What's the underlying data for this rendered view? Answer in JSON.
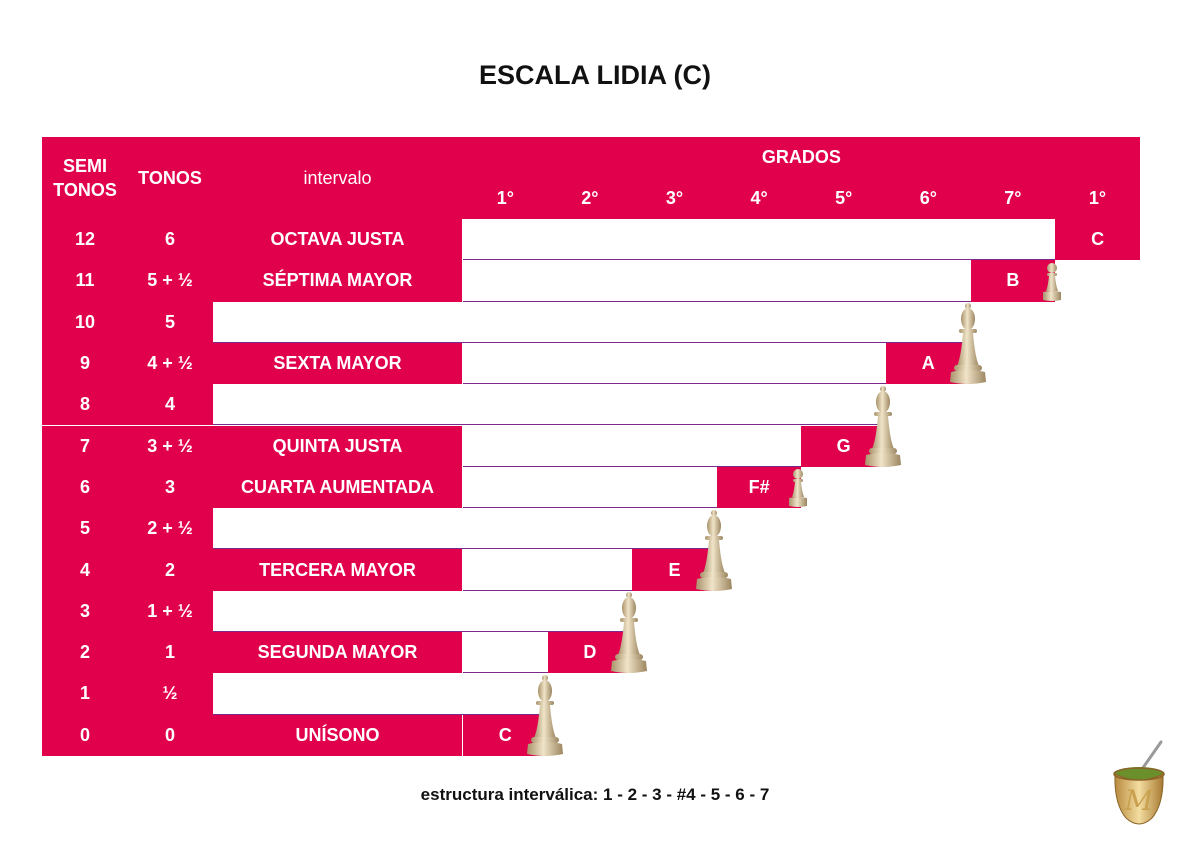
{
  "title": "ESCALA LIDIA (C)",
  "header": {
    "semitonos": "SEMI\nTONOS",
    "tonos": "TONOS",
    "intervalo": "intervalo",
    "grados": "GRADOS",
    "grados_cols": [
      "1°",
      "2°",
      "3°",
      "4°",
      "5°",
      "6°",
      "7°",
      "1°"
    ]
  },
  "rows": [
    {
      "semitonos": "12",
      "tonos": "6",
      "intervalo": "OCTAVA JUSTA",
      "note": "C",
      "piece": ""
    },
    {
      "semitonos": "11",
      "tonos": "5 + ½",
      "intervalo": "SÉPTIMA MAYOR",
      "note": "B",
      "piece": "pawn"
    },
    {
      "semitonos": "10",
      "tonos": "5",
      "intervalo": "",
      "note": "",
      "piece": ""
    },
    {
      "semitonos": "9",
      "tonos": "4 + ½",
      "intervalo": "SEXTA MAYOR",
      "note": "A",
      "piece": "bishop"
    },
    {
      "semitonos": "8",
      "tonos": "4",
      "intervalo": "",
      "note": "",
      "piece": ""
    },
    {
      "semitonos": "7",
      "tonos": "3 + ½",
      "intervalo": "QUINTA JUSTA",
      "note": "G",
      "piece": "bishop"
    },
    {
      "semitonos": "6",
      "tonos": "3",
      "intervalo": "CUARTA AUMENTADA",
      "note": "F#",
      "piece": "pawn"
    },
    {
      "semitonos": "5",
      "tonos": "2 + ½",
      "intervalo": "",
      "note": "",
      "piece": ""
    },
    {
      "semitonos": "4",
      "tonos": "2",
      "intervalo": "TERCERA MAYOR",
      "note": "E",
      "piece": "bishop"
    },
    {
      "semitonos": "3",
      "tonos": "1 + ½",
      "intervalo": "",
      "note": "",
      "piece": ""
    },
    {
      "semitonos": "2",
      "tonos": "1",
      "intervalo": "SEGUNDA MAYOR",
      "note": "D",
      "piece": "bishop"
    },
    {
      "semitonos": "1",
      "tonos": "½",
      "intervalo": "",
      "note": "",
      "piece": ""
    },
    {
      "semitonos": "0",
      "tonos": "0",
      "intervalo": "UNÍSONO",
      "note": "C",
      "piece": "bishop"
    }
  ],
  "footer": "estructura interválica: 1 - 2 - 3 - #4 - 5 - 6 - 7",
  "colors": {
    "accent": "#e0004c",
    "piece": "#d8c7a3",
    "text": "#111111"
  },
  "logo_icon": "mate-cup-icon"
}
